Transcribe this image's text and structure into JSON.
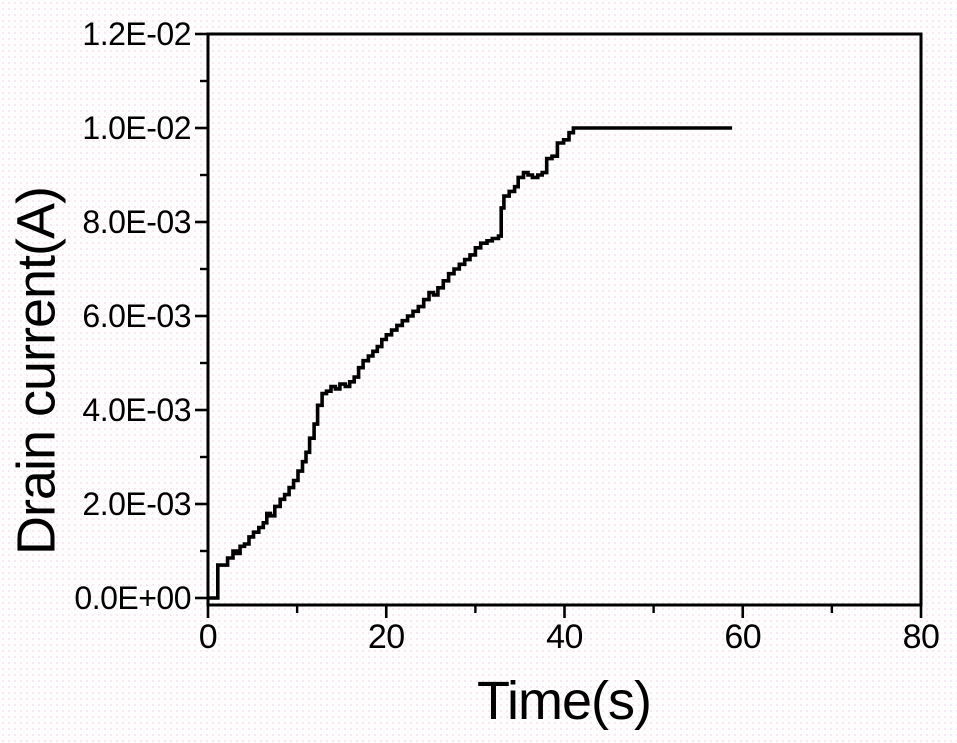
{
  "chart_data": {
    "type": "line",
    "line_shape": "step-after",
    "title": "",
    "xlabel": "Time(s)",
    "ylabel": "Drain current(A)",
    "xlim": [
      0,
      80
    ],
    "ylim": [
      0,
      0.012
    ],
    "grid": false,
    "legend": null,
    "frame": "full-box, ticks outward on left and bottom only",
    "x_ticks": {
      "major": [
        0,
        20,
        40,
        60,
        80
      ],
      "major_labels": [
        "0",
        "20",
        "40",
        "60",
        "80"
      ],
      "minor": [
        10,
        30,
        50,
        70
      ]
    },
    "y_ticks": {
      "major": [
        0,
        0.002,
        0.004,
        0.006,
        0.008,
        0.01,
        0.012
      ],
      "major_labels": [
        "0.0E+00",
        "2.0E-03",
        "4.0E-03",
        "6.0E-03",
        "8.0E-03",
        "1.0E-02",
        "1.2E-02"
      ],
      "minor": [
        0.001,
        0.003,
        0.005,
        0.007,
        0.009,
        0.011
      ]
    },
    "series": [
      {
        "name": "drain-current",
        "color": "#000000",
        "x_unit": "s",
        "y_unit": "A",
        "x": [
          0.0,
          1.1,
          2.2,
          2.8,
          3.2,
          3.6,
          4.1,
          4.6,
          5.1,
          5.7,
          6.2,
          6.6,
          7.0,
          7.5,
          8.1,
          8.6,
          9.1,
          9.6,
          10.1,
          10.6,
          11.0,
          11.4,
          11.9,
          12.3,
          12.8,
          13.3,
          13.8,
          14.3,
          14.8,
          15.4,
          15.9,
          16.4,
          16.9,
          17.4,
          18.0,
          18.5,
          19.0,
          19.5,
          20.0,
          20.6,
          21.2,
          21.8,
          22.4,
          23.0,
          23.6,
          24.2,
          24.8,
          25.3,
          25.8,
          26.4,
          27.0,
          27.6,
          28.2,
          28.8,
          29.4,
          30.0,
          30.6,
          31.3,
          31.9,
          32.6,
          32.9,
          33.2,
          33.8,
          34.4,
          34.8,
          35.4,
          35.9,
          36.4,
          37.0,
          37.5,
          38.0,
          38.6,
          39.2,
          39.9,
          40.5,
          41.0,
          58.8
        ],
        "y": [
          0,
          0.0007,
          0.00085,
          0.001,
          0.00095,
          0.0011,
          0.00115,
          0.0013,
          0.0014,
          0.0015,
          0.0016,
          0.0018,
          0.00175,
          0.00195,
          0.0021,
          0.0022,
          0.00235,
          0.0025,
          0.0027,
          0.0029,
          0.0031,
          0.0034,
          0.0037,
          0.0041,
          0.00435,
          0.0044,
          0.0045,
          0.00445,
          0.00455,
          0.0045,
          0.0046,
          0.0047,
          0.0049,
          0.00505,
          0.00515,
          0.00525,
          0.00535,
          0.0055,
          0.0056,
          0.0057,
          0.0058,
          0.0059,
          0.006,
          0.0061,
          0.0062,
          0.00635,
          0.0065,
          0.00645,
          0.0066,
          0.00675,
          0.0069,
          0.007,
          0.0071,
          0.0072,
          0.0073,
          0.00745,
          0.00755,
          0.0076,
          0.00765,
          0.0077,
          0.0083,
          0.00855,
          0.00865,
          0.00875,
          0.00895,
          0.00905,
          0.009,
          0.00895,
          0.009,
          0.00905,
          0.00935,
          0.0094,
          0.00968,
          0.00975,
          0.0099,
          0.01,
          0.01
        ]
      }
    ]
  },
  "colors": {
    "line": "#000000",
    "text": "#000000",
    "background": "#fdfdfd"
  }
}
